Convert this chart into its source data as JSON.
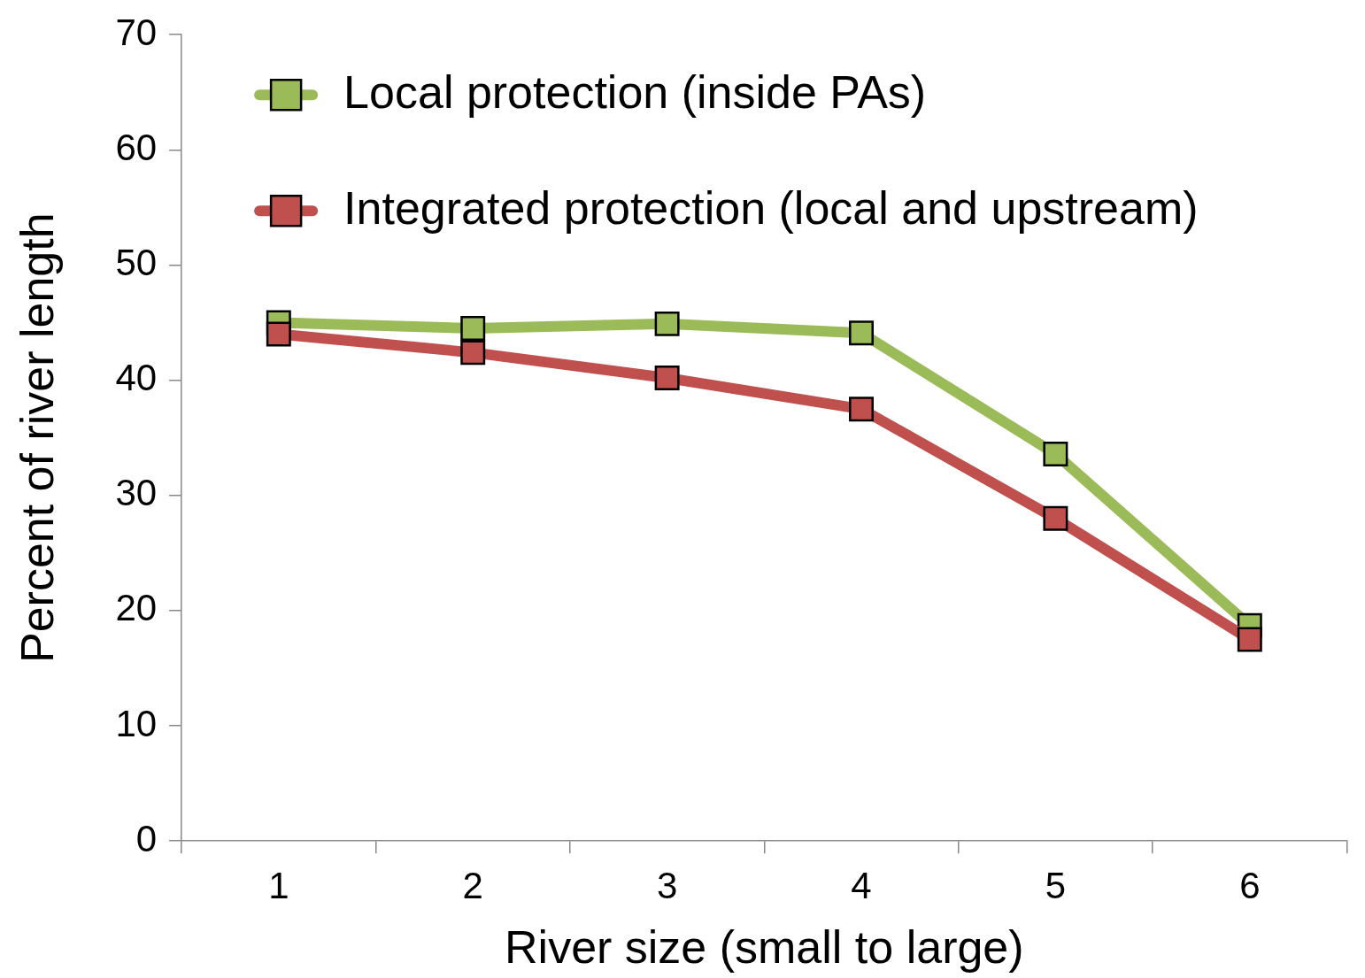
{
  "chart_data": {
    "type": "line",
    "xlabel": "River size (small to large)",
    "ylabel": "Percent of river length",
    "categories": [
      "1",
      "2",
      "3",
      "4",
      "5",
      "6"
    ],
    "series": [
      {
        "name": "Local protection (inside PAs)",
        "color": "#9bbb59",
        "values": [
          45.0,
          44.5,
          44.9,
          44.1,
          33.6,
          18.7
        ]
      },
      {
        "name": "Integrated protection (local and upstream)",
        "color": "#c0504d",
        "values": [
          44.0,
          42.4,
          40.2,
          37.5,
          28.0,
          17.5
        ]
      }
    ],
    "ylim": [
      0,
      70
    ],
    "yticks": [
      0,
      10,
      20,
      30,
      40,
      50,
      60,
      70
    ],
    "grid": false,
    "legend": "top left",
    "marker": "square",
    "line_style": "solid"
  }
}
